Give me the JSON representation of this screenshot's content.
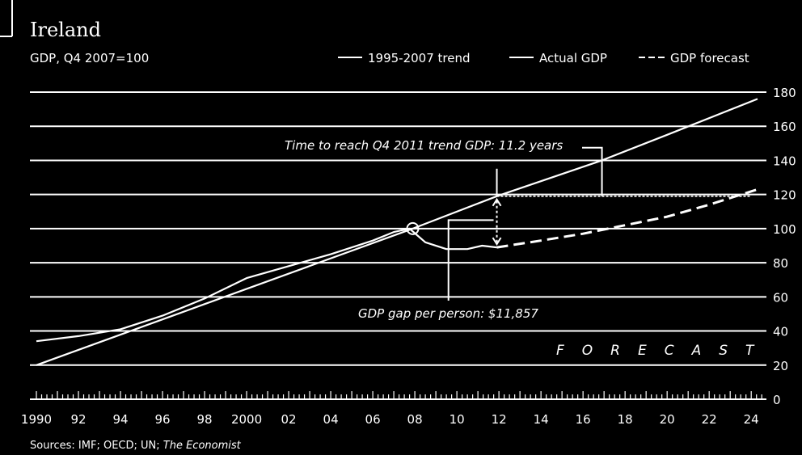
{
  "header": {
    "title": "Ireland",
    "subtitle": "GDP, Q4 2007=100",
    "source_prefix": "Sources: IMF; OECD; UN; ",
    "source_italic": "The Economist"
  },
  "legend": [
    {
      "label": "1995-2007 trend",
      "style": "solid"
    },
    {
      "label": "Actual GDP",
      "style": "solid"
    },
    {
      "label": "GDP forecast",
      "style": "dashed"
    }
  ],
  "annotations": {
    "time_to_trend": "Time to reach Q4 2011 trend GDP: 11.2 years",
    "gdp_gap": "GDP gap per person: $11,857",
    "forecast": "FORECAST"
  },
  "colors": {
    "background": "#000000",
    "foreground": "#ffffff"
  },
  "chart_data": {
    "type": "line",
    "xlim": [
      1990,
      2025
    ],
    "ylim": [
      0,
      180
    ],
    "x_ticks": [
      1990,
      1992,
      1994,
      1996,
      1998,
      2000,
      2002,
      2004,
      2006,
      2008,
      2010,
      2012,
      2014,
      2016,
      2018,
      2020,
      2022,
      2024
    ],
    "x_tick_labels": [
      "1990",
      "92",
      "94",
      "96",
      "98",
      "2000",
      "02",
      "04",
      "06",
      "08",
      "10",
      "12",
      "14",
      "16",
      "18",
      "20",
      "22",
      "24"
    ],
    "y_ticks": [
      0,
      20,
      40,
      60,
      80,
      100,
      120,
      140,
      160,
      180
    ],
    "y_axis_side": "right",
    "grid": true,
    "legend_position": "top",
    "series": [
      {
        "name": "1995-2007 trend",
        "style": "solid",
        "points": [
          [
            1990,
            20
          ],
          [
            2007.9,
            100
          ],
          [
            2011.9,
            119
          ],
          [
            2016.9,
            140
          ],
          [
            2020,
            155
          ],
          [
            2024.3,
            176
          ]
        ]
      },
      {
        "name": "Actual GDP",
        "style": "solid",
        "points": [
          [
            1990,
            34
          ],
          [
            1992,
            37
          ],
          [
            1994,
            41
          ],
          [
            1996,
            49
          ],
          [
            1998,
            59
          ],
          [
            2000,
            71
          ],
          [
            2002,
            78
          ],
          [
            2004,
            85
          ],
          [
            2006,
            93
          ],
          [
            2007,
            98
          ],
          [
            2007.75,
            100
          ],
          [
            2008.5,
            92
          ],
          [
            2009.5,
            88
          ],
          [
            2010.5,
            88
          ],
          [
            2011.2,
            90
          ],
          [
            2011.9,
            89
          ]
        ]
      },
      {
        "name": "GDP forecast",
        "style": "dashed",
        "points": [
          [
            2011.9,
            89
          ],
          [
            2014,
            93
          ],
          [
            2016,
            97
          ],
          [
            2018,
            102
          ],
          [
            2020,
            107
          ],
          [
            2022,
            114
          ],
          [
            2024.3,
            123
          ]
        ]
      },
      {
        "name": "Q4 2011 trend GDP level",
        "style": "dotted",
        "points": [
          [
            2011.9,
            119
          ],
          [
            2024,
            119
          ]
        ]
      }
    ]
  }
}
